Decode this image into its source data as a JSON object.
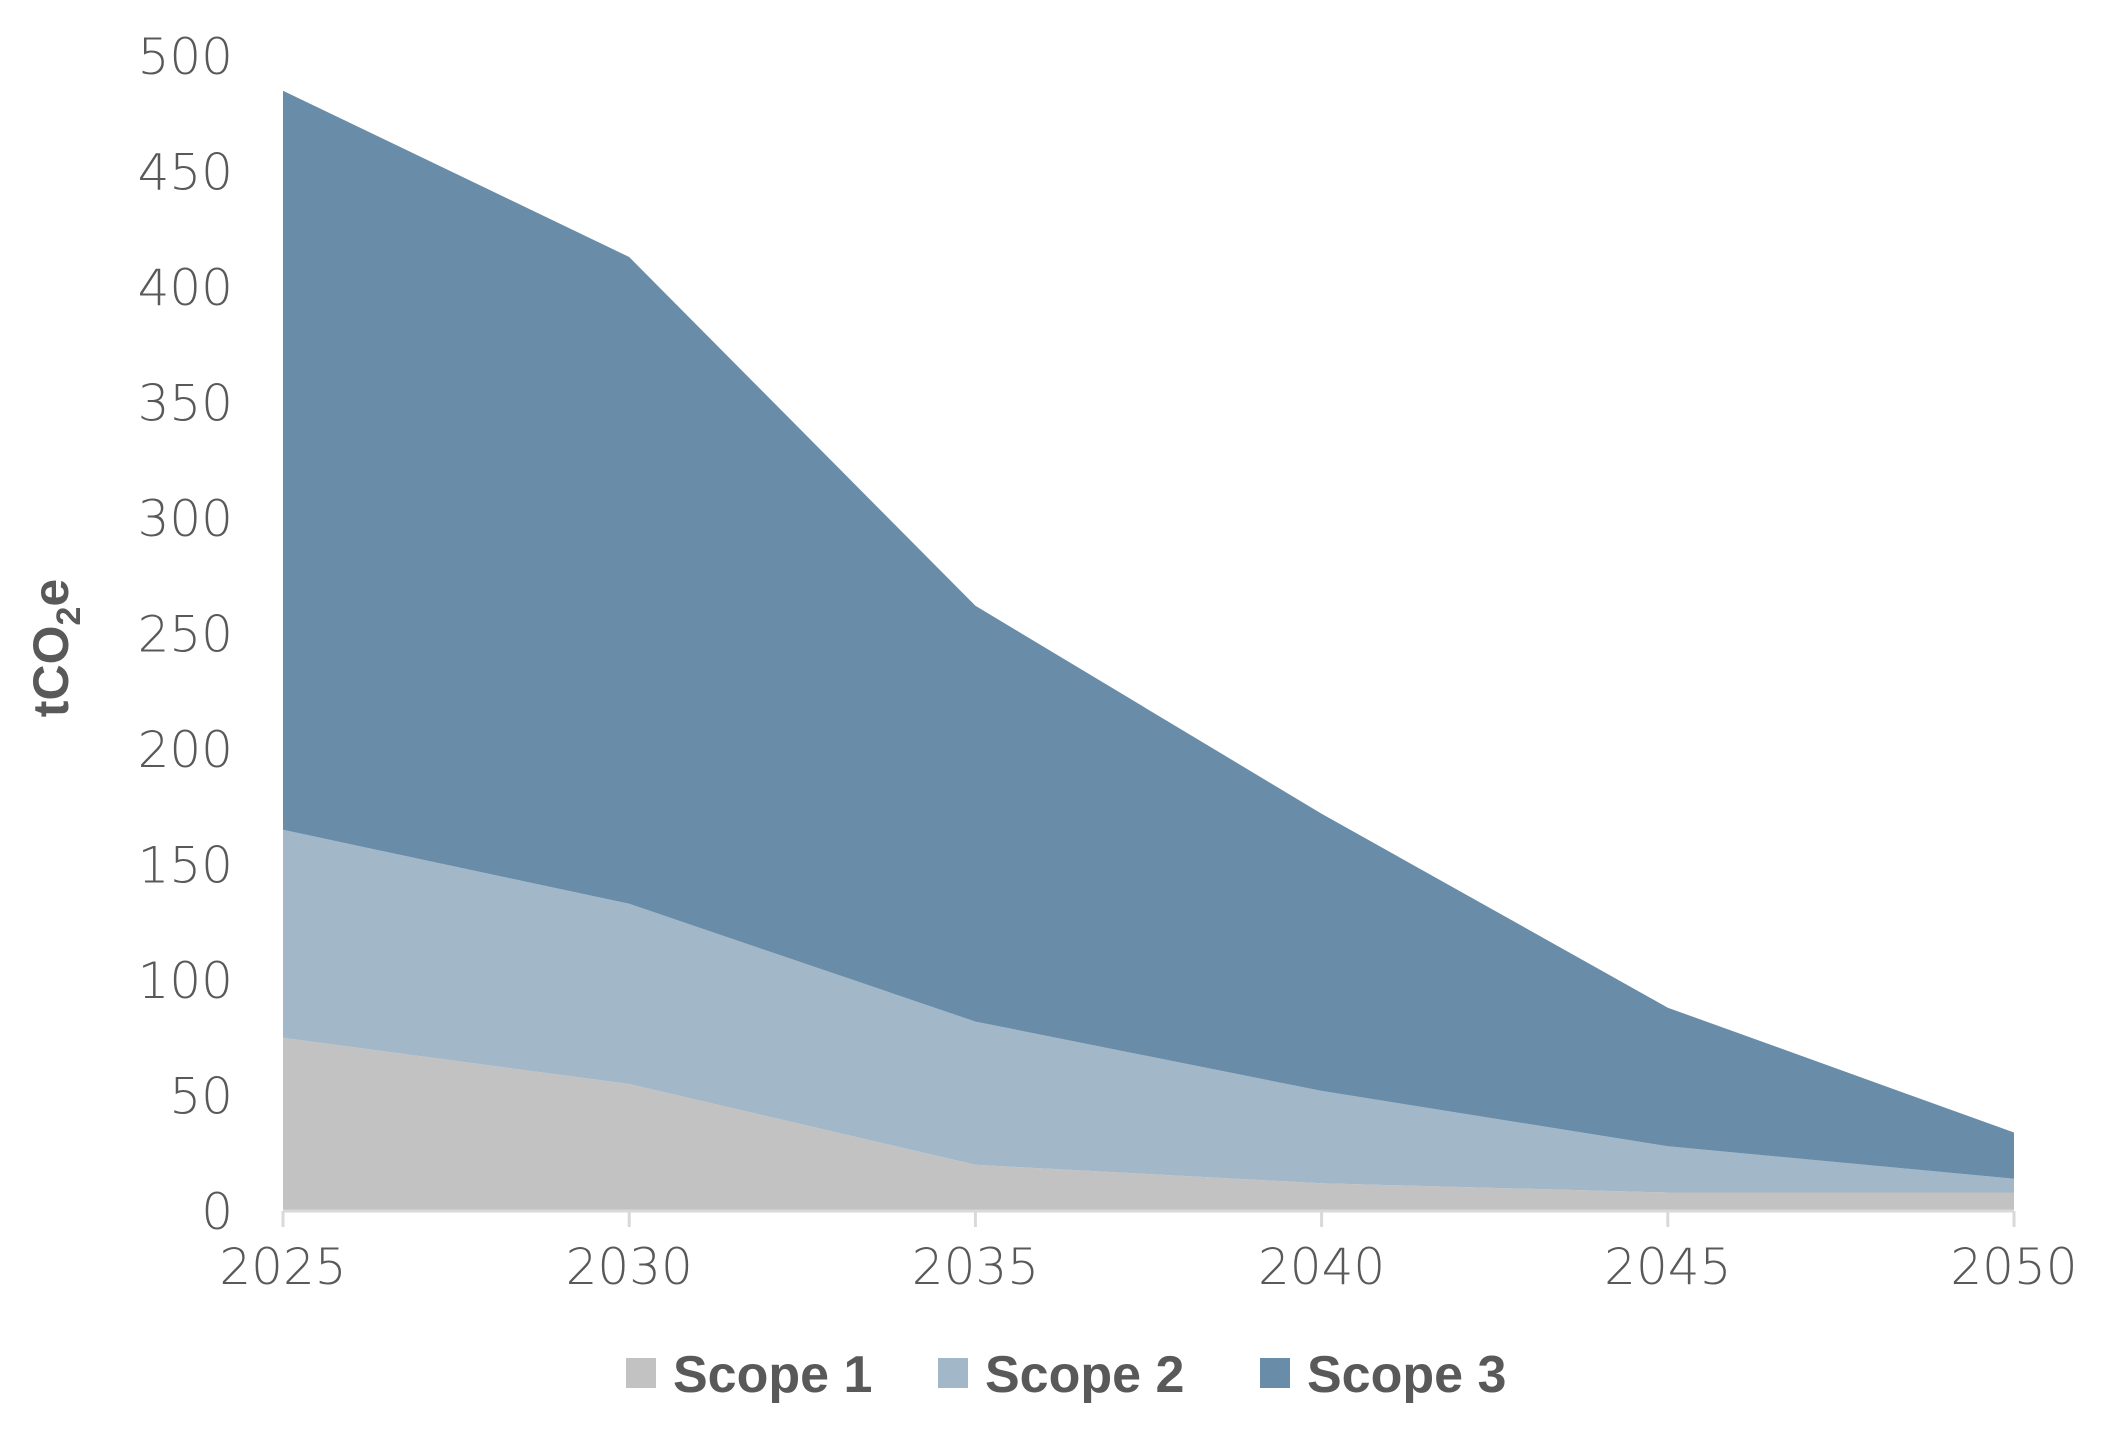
{
  "chart_data": {
    "type": "area",
    "stacked": true,
    "x": [
      2025,
      2030,
      2035,
      2040,
      2045,
      2050
    ],
    "series": [
      {
        "name": "Scope 1",
        "values": [
          75,
          55,
          20,
          12,
          8,
          8
        ],
        "color": "#c2c2c2"
      },
      {
        "name": "Scope 2",
        "values": [
          90,
          78,
          62,
          40,
          20,
          6
        ],
        "color": "#a2b7c8"
      },
      {
        "name": "Scope 3",
        "values": [
          320,
          280,
          180,
          120,
          60,
          20
        ],
        "color": "#698da9"
      }
    ],
    "ylabel": {
      "main": "tCO",
      "subscript": "2",
      "suffix": "e"
    },
    "ylim": [
      0,
      500
    ],
    "yticks": [
      0,
      50,
      100,
      150,
      200,
      250,
      300,
      350,
      400,
      450,
      500
    ],
    "xticks": [
      "2025",
      "2030",
      "2035",
      "2040",
      "2045",
      "2050"
    ],
    "grid": false,
    "legend": "bottom"
  }
}
